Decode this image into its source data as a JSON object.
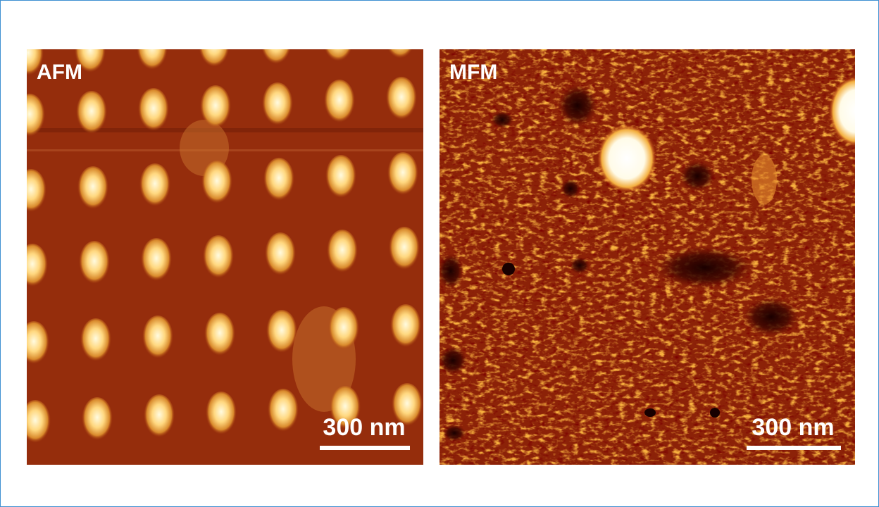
{
  "panels": [
    {
      "label": "AFM",
      "scale_bar": "300 nm"
    },
    {
      "label": "MFM",
      "scale_bar": "300 nm"
    }
  ]
}
